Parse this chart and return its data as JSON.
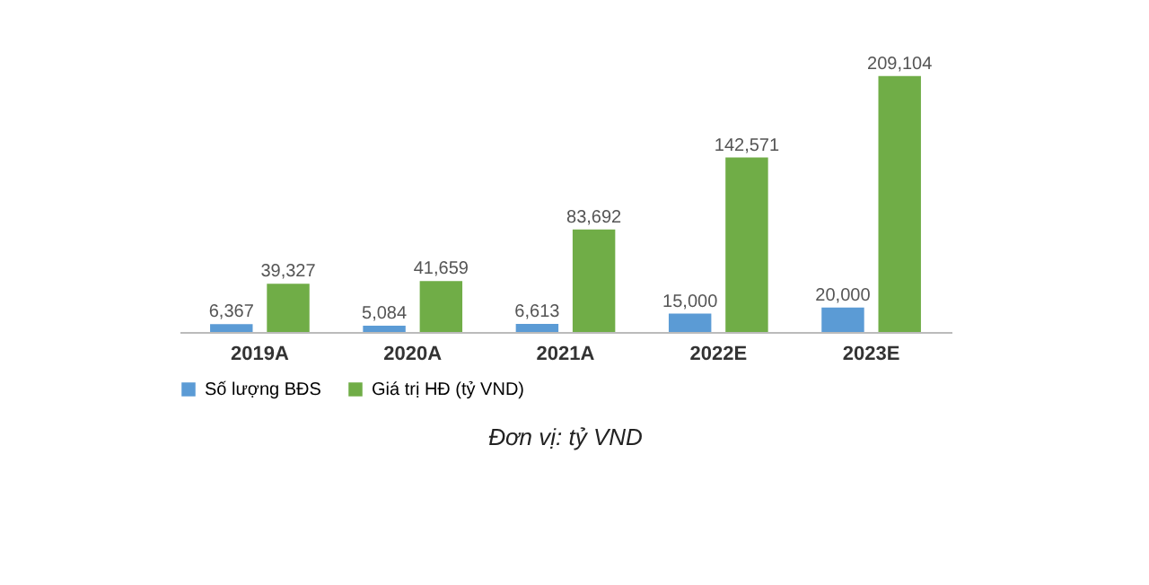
{
  "chart_data": {
    "type": "bar",
    "categories": [
      "2019A",
      "2020A",
      "2021A",
      "2022E",
      "2023E"
    ],
    "series": [
      {
        "name": "Số lượng BĐS",
        "color": "#5b9bd5",
        "values": [
          6367,
          5084,
          6613,
          15000,
          20000
        ],
        "value_labels": [
          "6,367",
          "5,084",
          "6,613",
          "15,000",
          "20,000"
        ]
      },
      {
        "name": "Giá trị HĐ (tỷ VND)",
        "color": "#70ad47",
        "values": [
          39327,
          41659,
          83692,
          142571,
          209104
        ],
        "value_labels": [
          "39,327",
          "41,659",
          "83,692",
          "142,571",
          "209,104"
        ]
      }
    ],
    "legend": "bottom",
    "grid": false,
    "annotations": [
      "Đơn vị: tỷ VND"
    ]
  }
}
